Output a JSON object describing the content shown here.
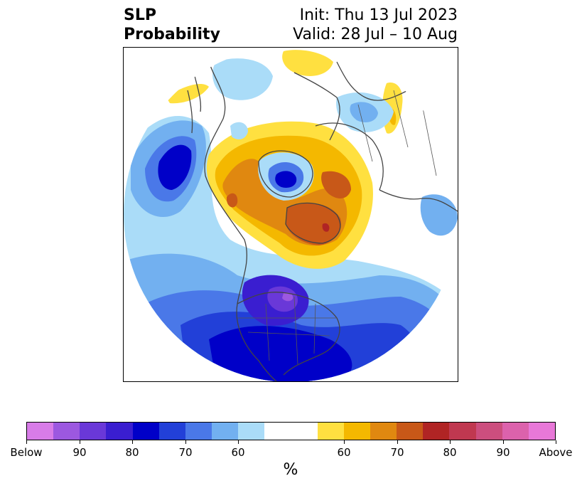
{
  "title": {
    "left_line1": "SLP",
    "left_line2": "Probability",
    "right_line1": "Init: Thu 13 Jul 2023",
    "right_line2": "Valid: 28 Jul – 10 Aug"
  },
  "colorbar": {
    "unit_label": "%",
    "segments": [
      {
        "color": "#d87ce8"
      },
      {
        "color": "#9c58e0"
      },
      {
        "color": "#6a38d8"
      },
      {
        "color": "#3a1ed0"
      },
      {
        "color": "#0000c8"
      },
      {
        "color": "#2240d8"
      },
      {
        "color": "#4a78e8"
      },
      {
        "color": "#72b0f0"
      },
      {
        "color": "#aadcf8"
      },
      {
        "color": "#ffffff",
        "wide": true
      },
      {
        "color": "#ffe040"
      },
      {
        "color": "#f4b800"
      },
      {
        "color": "#e08810"
      },
      {
        "color": "#c85818"
      },
      {
        "color": "#b02424"
      },
      {
        "color": "#c03850"
      },
      {
        "color": "#cc4e7e"
      },
      {
        "color": "#dc62ac"
      },
      {
        "color": "#e878d8"
      }
    ],
    "ticks": [
      "Below",
      "90",
      "80",
      "70",
      "60",
      "60",
      "70",
      "80",
      "90",
      "Above"
    ]
  }
}
